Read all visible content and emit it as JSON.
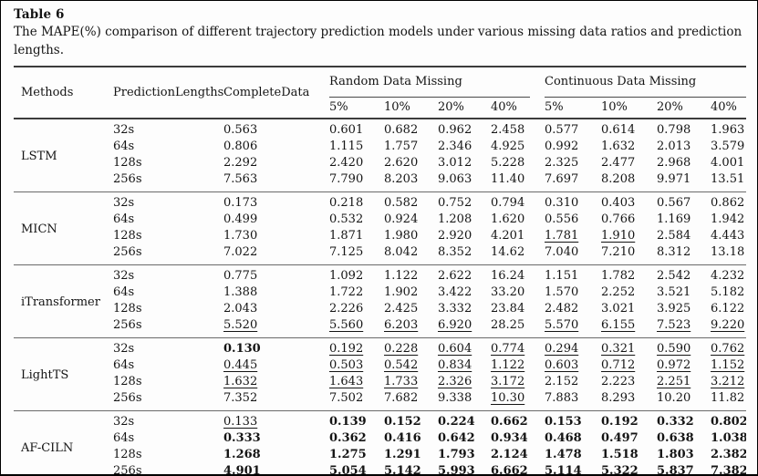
{
  "document": {
    "title": "Table 6",
    "caption": "The MAPE(%) comparison of different trajectory prediction models under various missing data ratios and prediction lengths."
  },
  "table": {
    "columns": {
      "methods": "Methods",
      "prediction_lengths": "PredictionLengths",
      "complete_data": "CompleteData",
      "random_group": "Random Data Missing",
      "continuous_group": "Continuous Data Missing",
      "ratios": [
        "5%",
        "10%",
        "20%",
        "40%"
      ]
    },
    "groups": [
      {
        "method": "LSTM",
        "rows": [
          {
            "length": "32s",
            "cells": [
              "0.563",
              "0.601",
              "0.682",
              "0.962",
              "2.458",
              "0.577",
              "0.614",
              "0.798",
              "1.963"
            ],
            "styles": [
              "",
              "",
              "",
              "",
              "",
              "",
              "",
              "",
              ""
            ]
          },
          {
            "length": "64s",
            "cells": [
              "0.806",
              "1.115",
              "1.757",
              "2.346",
              "4.925",
              "0.992",
              "1.632",
              "2.013",
              "3.579"
            ],
            "styles": [
              "",
              "",
              "",
              "",
              "",
              "",
              "",
              "",
              ""
            ]
          },
          {
            "length": "128s",
            "cells": [
              "2.292",
              "2.420",
              "2.620",
              "3.012",
              "5.228",
              "2.325",
              "2.477",
              "2.968",
              "4.001"
            ],
            "styles": [
              "",
              "",
              "",
              "",
              "",
              "",
              "",
              "",
              ""
            ]
          },
          {
            "length": "256s",
            "cells": [
              "7.563",
              "7.790",
              "8.203",
              "9.063",
              "11.40",
              "7.697",
              "8.208",
              "9.971",
              "13.51"
            ],
            "styles": [
              "",
              "",
              "",
              "",
              "",
              "",
              "",
              "",
              ""
            ]
          }
        ]
      },
      {
        "method": "MICN",
        "rows": [
          {
            "length": "32s",
            "cells": [
              "0.173",
              "0.218",
              "0.582",
              "0.752",
              "0.794",
              "0.310",
              "0.403",
              "0.567",
              "0.862"
            ],
            "styles": [
              "",
              "",
              "",
              "",
              "",
              "",
              "",
              "",
              ""
            ]
          },
          {
            "length": "64s",
            "cells": [
              "0.499",
              "0.532",
              "0.924",
              "1.208",
              "1.620",
              "0.556",
              "0.766",
              "1.169",
              "1.942"
            ],
            "styles": [
              "",
              "",
              "",
              "",
              "",
              "",
              "",
              "",
              ""
            ]
          },
          {
            "length": "128s",
            "cells": [
              "1.730",
              "1.871",
              "1.980",
              "2.920",
              "4.201",
              "1.781",
              "1.910",
              "2.584",
              "4.443"
            ],
            "styles": [
              "",
              "",
              "",
              "",
              "",
              "u",
              "u",
              "",
              ""
            ]
          },
          {
            "length": "256s",
            "cells": [
              "7.022",
              "7.125",
              "8.042",
              "8.352",
              "14.62",
              "7.040",
              "7.210",
              "8.312",
              "13.18"
            ],
            "styles": [
              "",
              "",
              "",
              "",
              "",
              "",
              "",
              "",
              ""
            ]
          }
        ]
      },
      {
        "method": "iTransformer",
        "rows": [
          {
            "length": "32s",
            "cells": [
              "0.775",
              "1.092",
              "1.122",
              "2.622",
              "16.24",
              "1.151",
              "1.782",
              "2.542",
              "4.232"
            ],
            "styles": [
              "",
              "",
              "",
              "",
              "",
              "",
              "",
              "",
              ""
            ]
          },
          {
            "length": "64s",
            "cells": [
              "1.388",
              "1.722",
              "1.902",
              "3.422",
              "33.20",
              "1.570",
              "2.252",
              "3.521",
              "5.182"
            ],
            "styles": [
              "",
              "",
              "",
              "",
              "",
              "",
              "",
              "",
              ""
            ]
          },
          {
            "length": "128s",
            "cells": [
              "2.043",
              "2.226",
              "2.425",
              "3.332",
              "23.84",
              "2.482",
              "3.021",
              "3.925",
              "6.122"
            ],
            "styles": [
              "",
              "",
              "",
              "",
              "",
              "",
              "",
              "",
              ""
            ]
          },
          {
            "length": "256s",
            "cells": [
              "5.520",
              "5.560",
              "6.203",
              "6.920",
              "28.25",
              "5.570",
              "6.155",
              "7.523",
              "9.220"
            ],
            "styles": [
              "u",
              "u",
              "u",
              "u",
              "",
              "u",
              "u",
              "u",
              "u"
            ]
          }
        ]
      },
      {
        "method": "LightTS",
        "rows": [
          {
            "length": "32s",
            "cells": [
              "0.130",
              "0.192",
              "0.228",
              "0.604",
              "0.774",
              "0.294",
              "0.321",
              "0.590",
              "0.762"
            ],
            "styles": [
              "b",
              "u",
              "u",
              "u",
              "u",
              "u",
              "u",
              "u",
              "u"
            ]
          },
          {
            "length": "64s",
            "cells": [
              "0.445",
              "0.503",
              "0.542",
              "0.834",
              "1.122",
              "0.603",
              "0.712",
              "0.972",
              "1.152"
            ],
            "styles": [
              "u",
              "u",
              "u",
              "u",
              "u",
              "u",
              "u",
              "u",
              "u"
            ]
          },
          {
            "length": "128s",
            "cells": [
              "1.632",
              "1.643",
              "1.733",
              "2.326",
              "3.172",
              "2.152",
              "2.223",
              "2.251",
              "3.212"
            ],
            "styles": [
              "u",
              "u",
              "u",
              "u",
              "u",
              "",
              "",
              "u",
              "u"
            ]
          },
          {
            "length": "256s",
            "cells": [
              "7.352",
              "7.502",
              "7.682",
              "9.338",
              "10.30",
              "7.883",
              "8.293",
              "10.20",
              "11.82"
            ],
            "styles": [
              "",
              "",
              "",
              "",
              "u",
              "",
              "",
              "",
              ""
            ]
          }
        ]
      },
      {
        "method": "AF-CILN",
        "rows": [
          {
            "length": "32s",
            "cells": [
              "0.133",
              "0.139",
              "0.152",
              "0.224",
              "0.662",
              "0.153",
              "0.192",
              "0.332",
              "0.802"
            ],
            "styles": [
              "u",
              "b",
              "b",
              "b",
              "b",
              "b",
              "b",
              "b",
              "b"
            ]
          },
          {
            "length": "64s",
            "cells": [
              "0.333",
              "0.362",
              "0.416",
              "0.642",
              "0.934",
              "0.468",
              "0.497",
              "0.638",
              "1.038"
            ],
            "styles": [
              "b",
              "b",
              "b",
              "b",
              "b",
              "b",
              "b",
              "b",
              "b"
            ]
          },
          {
            "length": "128s",
            "cells": [
              "1.268",
              "1.275",
              "1.291",
              "1.793",
              "2.124",
              "1.478",
              "1.518",
              "1.803",
              "2.382"
            ],
            "styles": [
              "b",
              "b",
              "b",
              "b",
              "b",
              "b",
              "b",
              "b",
              "b"
            ]
          },
          {
            "length": "256s",
            "cells": [
              "4.901",
              "5.054",
              "5.142",
              "5.993",
              "6.662",
              "5.114",
              "5.322",
              "5.837",
              "7.382"
            ],
            "styles": [
              "b",
              "b",
              "b",
              "b",
              "b",
              "b",
              "b",
              "b",
              "b"
            ]
          }
        ]
      }
    ]
  }
}
